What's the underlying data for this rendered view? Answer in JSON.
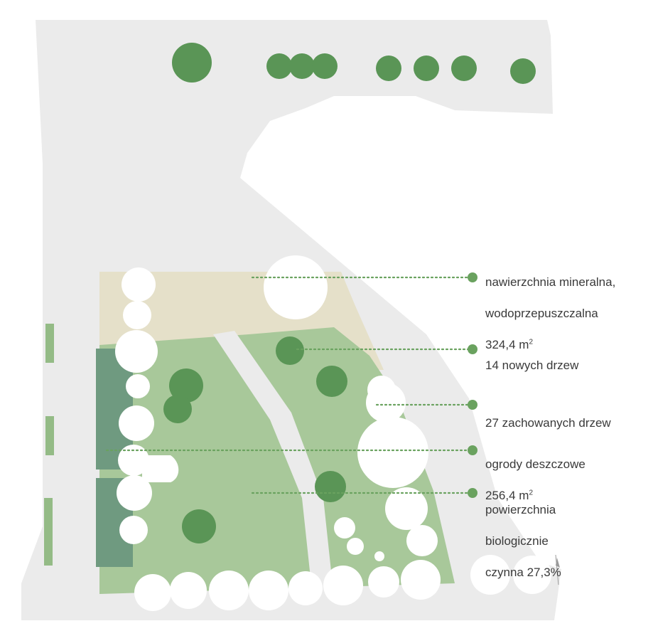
{
  "colors": {
    "background": "#ffffff",
    "base_area": "#ebebeb",
    "mineral_surface": "#e5e0c9",
    "lawn": "#a8c89a",
    "lawn_dark": "#94bb86",
    "rain_garden": "#6f9a80",
    "tree_new": "#5a9556",
    "tree_preserved": "#ffffff",
    "leader_dots": "#6aa25f",
    "text": "#3a3a3a"
  },
  "legend": [
    {
      "key": "mineral",
      "line1": "nawierzchnia mineralna,",
      "line2": "wodoprzepuszczalna",
      "line3": "324,4 m",
      "sup": "2"
    },
    {
      "key": "new_trees",
      "line1": "14 nowych drzew"
    },
    {
      "key": "kept_trees",
      "line1": "27 zachowanych drzew"
    },
    {
      "key": "rain_gardens",
      "line1": "ogrody deszczowe",
      "line2": "256,4 m",
      "sup": "2"
    },
    {
      "key": "bio_active",
      "line1": "powierzchnia",
      "line2": "biologicznie",
      "line3": "czynna 27,3%"
    }
  ],
  "north_arrow_icon": "north-arrow-icon"
}
